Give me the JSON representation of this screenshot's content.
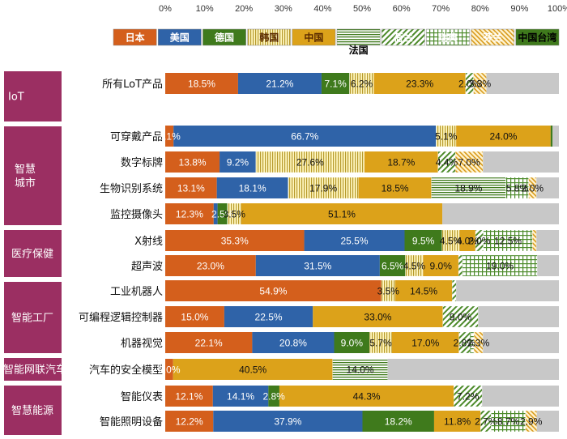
{
  "chart_data": {
    "type": "bar",
    "orientation": "horizontal",
    "stacked": true,
    "xlim": [
      0,
      100
    ],
    "x_tick_labels": [
      "0%",
      "10%",
      "20%",
      "30%",
      "40%",
      "50%",
      "60%",
      "70%",
      "80%",
      "90%",
      "100%"
    ],
    "categories": [
      "所有LoT产品",
      "可穿戴产品",
      "数字标牌",
      "生物识别系统",
      "监控摄像头",
      "X射线",
      "超声波",
      "工业机器人",
      "可编程逻辑控制器",
      "机器视觉",
      "汽车的安全模型",
      "智能仪表",
      "智能照明设备"
    ],
    "groups": [
      {
        "label": "IoT",
        "categories": [
          "所有LoT产品"
        ]
      },
      {
        "label": "智慧城市",
        "categories": [
          "可穿戴产品",
          "数字标牌",
          "生物识别系统",
          "监控摄像头"
        ]
      },
      {
        "label": "医疗保健",
        "categories": [
          "X射线",
          "超声波"
        ]
      },
      {
        "label": "智能工厂",
        "categories": [
          "工业机器人",
          "可编程逻辑控制器",
          "机器视觉"
        ]
      },
      {
        "label": "智能网联汽车",
        "categories": [
          "汽车的安全模型"
        ]
      },
      {
        "label": "智慧能源",
        "categories": [
          "智能仪表",
          "智能照明设备"
        ]
      }
    ],
    "series": [
      {
        "name": "日本",
        "color": "#d45f1c",
        "pattern": "solid",
        "values": [
          18.5,
          2.1,
          13.8,
          13.1,
          12.3,
          35.3,
          23.0,
          54.9,
          15.0,
          22.1,
          2.0,
          12.1,
          12.2
        ]
      },
      {
        "name": "美国",
        "color": "#2f63a8",
        "pattern": "solid",
        "values": [
          21.2,
          66.7,
          9.2,
          18.1,
          1.0,
          25.5,
          31.5,
          0,
          22.5,
          20.8,
          0,
          14.1,
          37.9
        ]
      },
      {
        "name": "德国",
        "color": "#3f7a1c",
        "pattern": "solid",
        "values": [
          7.1,
          0,
          0,
          0,
          2.5,
          9.5,
          6.5,
          0,
          0,
          9.0,
          0,
          2.8,
          18.2
        ]
      },
      {
        "name": "韩国",
        "color": "#fff2a8",
        "pattern": "vertical-lines",
        "values": [
          6.2,
          5.1,
          27.6,
          17.9,
          3.5,
          4.5,
          4.5,
          3.5,
          0,
          5.7,
          0,
          0,
          0
        ]
      },
      {
        "name": "中国",
        "color": "#dca21a",
        "pattern": "solid",
        "values": [
          23.3,
          24.0,
          18.7,
          18.5,
          51.1,
          4.0,
          9.0,
          14.5,
          33.0,
          17.0,
          40.5,
          44.3,
          11.8
        ]
      },
      {
        "name": "法国",
        "color": "#4c8a2a",
        "pattern": "horizontal-lines",
        "values": [
          0,
          0,
          0,
          18.9,
          0,
          0,
          0,
          0,
          0,
          0,
          14.0,
          0,
          0
        ]
      },
      {
        "name": "荷兰",
        "color": "#4c8a2a",
        "pattern": "diagonal-lines",
        "values": [
          2.0,
          0,
          4.4,
          0,
          0,
          2.0,
          1.0,
          1.0,
          9.0,
          2.8,
          0,
          7.2,
          2.7
        ]
      },
      {
        "name": "瑞典",
        "color": "#4c8a2a",
        "pattern": "grid",
        "values": [
          0,
          0,
          0,
          5.8,
          0,
          12.5,
          19.0,
          0,
          0,
          1.0,
          0,
          0,
          8.7
        ]
      },
      {
        "name": "芬兰",
        "color": "#e3a62a",
        "pattern": "diagonal-dense",
        "values": [
          3.3,
          0,
          7.0,
          2.0,
          0,
          1.0,
          0,
          0,
          0,
          2.3,
          0,
          0,
          2.9
        ]
      },
      {
        "name": "中国台湾",
        "color": "#3f7a1c",
        "pattern": "solid",
        "values": [
          0,
          0.5,
          0,
          0,
          0,
          0,
          0,
          0,
          0,
          0,
          0,
          0,
          0
        ]
      },
      {
        "name": "",
        "color": "#c8c8c8",
        "pattern": "solid",
        "values": [
          18.4,
          1.6,
          19.3,
          5.7,
          29.6,
          5.7,
          5.5,
          26.1,
          20.5,
          19.3,
          43.5,
          19.5,
          5.6
        ]
      }
    ],
    "data_labels": [
      [
        "18.5%",
        "21.2%",
        "7.1%",
        "6.2%",
        "23.3%",
        "",
        "2.0%",
        "",
        "3.3%",
        "",
        ""
      ],
      [
        "2.1%",
        "66.7%",
        "",
        "5.1%",
        "24.0%",
        "",
        "",
        "",
        "",
        "",
        ""
      ],
      [
        "13.8%",
        "9.2%",
        "",
        "27.6%",
        "18.7%",
        "",
        "4.4%",
        "",
        "7.0%",
        "",
        ""
      ],
      [
        "13.1%",
        "18.1%",
        "",
        "17.9%",
        "18.5%",
        "18.9%",
        "",
        "5.8%",
        "2.0%",
        "",
        ""
      ],
      [
        "12.3%",
        "",
        "2.5%",
        "3.5%",
        "51.1%",
        "",
        "",
        "",
        "",
        "",
        ""
      ],
      [
        "35.3%",
        "25.5%",
        "9.5%",
        "4.5%",
        "4.0%",
        "",
        "2.0%",
        "12.5%",
        "",
        "",
        ""
      ],
      [
        "23.0%",
        "31.5%",
        "6.5%",
        "4.5%",
        "9.0%",
        "",
        "",
        "19.0%",
        "",
        "",
        ""
      ],
      [
        "54.9%",
        "",
        "",
        "3.5%",
        "14.5%",
        "",
        "",
        "",
        "",
        "",
        ""
      ],
      [
        "15.0%",
        "22.5%",
        "",
        "",
        "33.0%",
        "",
        "9.0%",
        "",
        "",
        "",
        ""
      ],
      [
        "22.1%",
        "20.8%",
        "9.0%",
        "5.7%",
        "17.0%",
        "",
        "2.8%",
        "",
        "2.3%",
        "",
        ""
      ],
      [
        "2.0%",
        "",
        "",
        "",
        "40.5%",
        "14.0%",
        "",
        "",
        "",
        "",
        ""
      ],
      [
        "12.1%",
        "14.1%",
        "2.8%",
        "",
        "44.3%",
        "",
        "7.2%",
        "",
        "",
        "",
        ""
      ],
      [
        "12.2%",
        "37.9%",
        "18.2%",
        "",
        "11.8%",
        "",
        "2.7%",
        "8.7%",
        "2.9%",
        "",
        ""
      ]
    ],
    "legend": {
      "position": "top"
    },
    "grid": false
  }
}
